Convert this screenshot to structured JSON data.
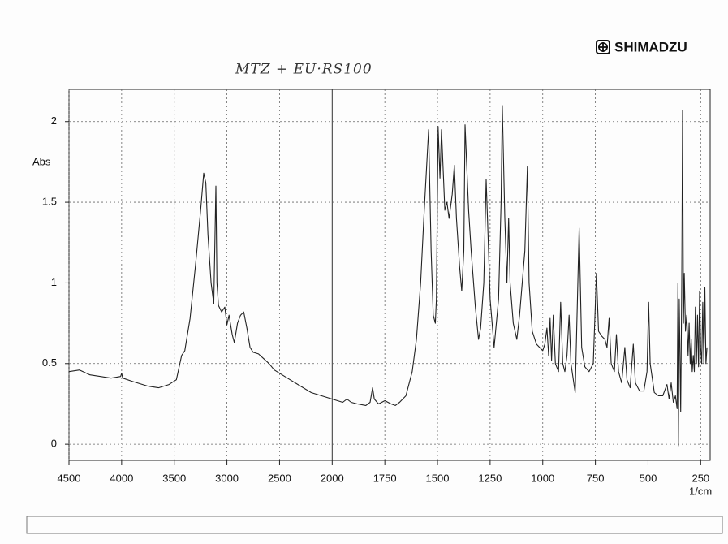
{
  "chart_data": {
    "type": "line",
    "brand": "SHIMADZU",
    "title": "MTZ + EU·RS100",
    "y_label": "Abs",
    "x_label": "1/cm",
    "color": "#222222",
    "xlim": [
      4500,
      205
    ],
    "x_scale_change": 2000,
    "ylim": [
      -0.1,
      2.2
    ],
    "xticks": [
      4500,
      4000,
      3500,
      3000,
      2500,
      2000,
      1750,
      1500,
      1250,
      1000,
      750,
      500,
      250
    ],
    "yticks": [
      0,
      0.5,
      1,
      1.5,
      2
    ],
    "grid": true,
    "x": [
      4500,
      4400,
      4300,
      4100,
      4010,
      4000,
      3990,
      3900,
      3750,
      3650,
      3550,
      3480,
      3430,
      3400,
      3350,
      3300,
      3250,
      3220,
      3200,
      3180,
      3150,
      3125,
      3105,
      3095,
      3080,
      3050,
      3020,
      3000,
      2980,
      2950,
      2930,
      2900,
      2870,
      2840,
      2810,
      2780,
      2750,
      2700,
      2650,
      2600,
      2550,
      2500,
      2400,
      2300,
      2200,
      2100,
      2000,
      1950,
      1930,
      1910,
      1880,
      1840,
      1820,
      1808,
      1800,
      1780,
      1750,
      1720,
      1700,
      1680,
      1650,
      1620,
      1600,
      1580,
      1565,
      1542,
      1530,
      1520,
      1510,
      1505,
      1497,
      1488,
      1481,
      1465,
      1455,
      1445,
      1430,
      1420,
      1410,
      1395,
      1385,
      1375,
      1369,
      1360,
      1352,
      1340,
      1320,
      1305,
      1295,
      1280,
      1269,
      1260,
      1250,
      1231,
      1210,
      1198,
      1192,
      1180,
      1170,
      1162,
      1155,
      1140,
      1123,
      1110,
      1085,
      1073,
      1065,
      1050,
      1030,
      1000,
      990,
      980,
      972,
      965,
      958,
      950,
      940,
      925,
      915,
      905,
      895,
      885,
      875,
      866,
      846,
      827,
      815,
      800,
      780,
      760,
      745,
      735,
      720,
      705,
      695,
      685,
      675,
      660,
      650,
      640,
      625,
      610,
      600,
      585,
      570,
      560,
      540,
      520,
      505,
      497,
      490,
      470,
      450,
      430,
      410,
      400,
      390,
      380,
      370,
      362,
      358,
      356,
      352,
      345,
      340,
      336,
      332,
      328,
      322,
      316,
      310,
      305,
      300,
      295,
      290,
      285,
      280,
      275,
      270,
      265,
      260,
      255,
      250,
      245,
      240,
      235,
      230,
      225,
      220
    ],
    "values": [
      0.45,
      0.46,
      0.43,
      0.41,
      0.42,
      0.44,
      0.41,
      0.39,
      0.36,
      0.35,
      0.37,
      0.4,
      0.55,
      0.58,
      0.78,
      1.1,
      1.45,
      1.68,
      1.62,
      1.3,
      1.0,
      0.87,
      1.6,
      1.0,
      0.86,
      0.82,
      0.85,
      0.74,
      0.8,
      0.68,
      0.63,
      0.75,
      0.8,
      0.82,
      0.72,
      0.6,
      0.57,
      0.56,
      0.53,
      0.5,
      0.46,
      0.44,
      0.4,
      0.36,
      0.32,
      0.3,
      0.28,
      0.26,
      0.28,
      0.26,
      0.25,
      0.24,
      0.26,
      0.35,
      0.28,
      0.25,
      0.27,
      0.25,
      0.24,
      0.26,
      0.3,
      0.45,
      0.65,
      1.0,
      1.4,
      1.95,
      1.2,
      0.8,
      0.75,
      0.9,
      1.97,
      1.65,
      1.95,
      1.45,
      1.5,
      1.4,
      1.55,
      1.73,
      1.4,
      1.1,
      0.95,
      1.2,
      1.98,
      1.7,
      1.45,
      1.2,
      0.85,
      0.65,
      0.72,
      1.0,
      1.64,
      1.3,
      0.9,
      0.6,
      0.9,
      1.5,
      2.1,
      1.4,
      1.0,
      1.4,
      1.0,
      0.75,
      0.65,
      0.8,
      1.2,
      1.72,
      1.0,
      0.7,
      0.62,
      0.58,
      0.62,
      0.72,
      0.55,
      0.78,
      0.52,
      0.8,
      0.5,
      0.45,
      0.88,
      0.5,
      0.45,
      0.55,
      0.8,
      0.5,
      0.32,
      1.34,
      0.6,
      0.48,
      0.45,
      0.5,
      1.06,
      0.7,
      0.67,
      0.65,
      0.6,
      0.78,
      0.5,
      0.45,
      0.68,
      0.45,
      0.38,
      0.6,
      0.4,
      0.35,
      0.62,
      0.38,
      0.33,
      0.33,
      0.45,
      0.88,
      0.5,
      0.32,
      0.3,
      0.3,
      0.37,
      0.28,
      0.38,
      0.26,
      0.3,
      0.22,
      1.0,
      -0.01,
      0.9,
      0.2,
      1.0,
      2.07,
      0.75,
      1.06,
      0.7,
      0.8,
      0.55,
      0.75,
      0.5,
      0.65,
      0.45,
      0.55,
      0.45,
      0.85,
      0.5,
      0.8,
      0.48,
      0.95,
      0.6,
      0.5,
      0.88,
      0.5,
      0.97,
      0.5,
      0.6
    ]
  }
}
